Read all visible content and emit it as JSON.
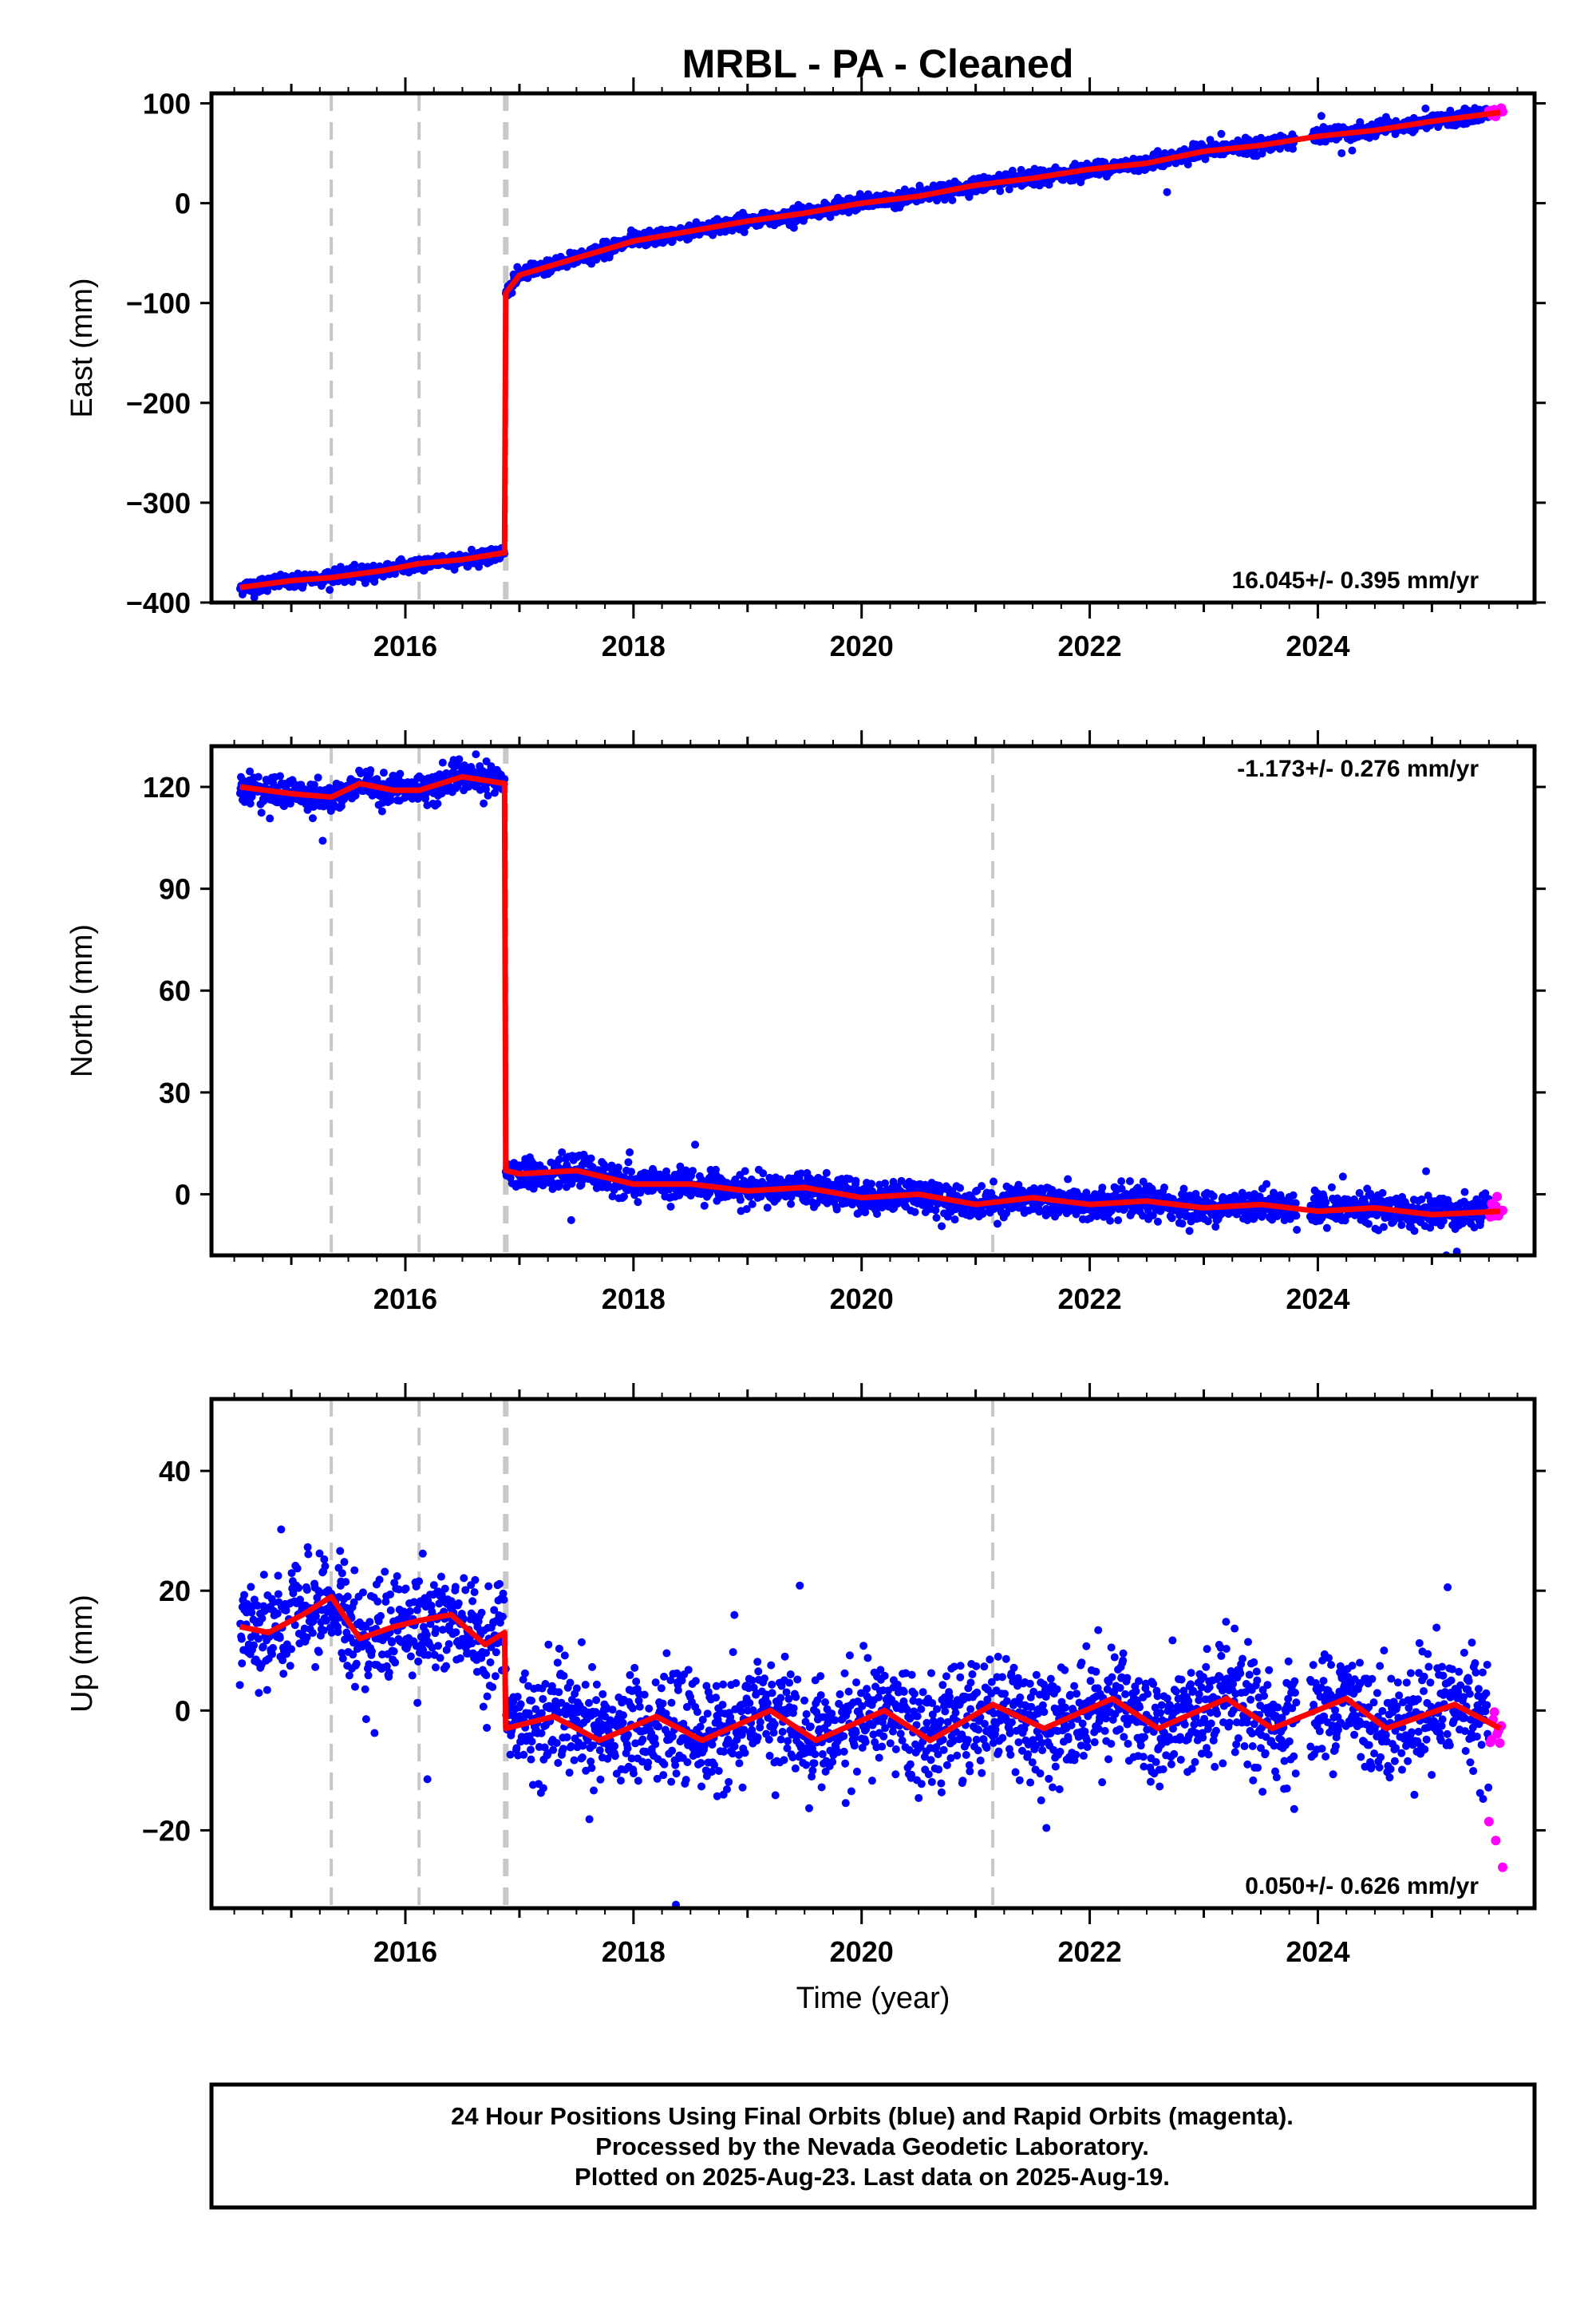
{
  "title": "MRBL  - PA - Cleaned",
  "footer": {
    "line1": "24 Hour Positions Using Final Orbits (blue) and Rapid Orbits (magenta).",
    "line2": "Processed by the Nevada Geodetic Laboratory.",
    "line3": "Plotted on 2025-Aug-23. Last data on 2025-Aug-19."
  },
  "colors": {
    "final_orbits": "#0000ff",
    "rapid_orbits": "#ff00ff",
    "model_fit": "#ff0000",
    "event_lines": "#c8c8c8"
  },
  "chart_data": [
    {
      "type": "scatter",
      "component": "east",
      "ylabel": "East (mm)",
      "xlabel": "",
      "xlim": [
        2014.3,
        2025.9
      ],
      "ylim": [
        -400,
        110
      ],
      "xticks": [
        2016,
        2018,
        2020,
        2022,
        2024
      ],
      "yticks": [
        -400,
        -300,
        -200,
        -100,
        0,
        100
      ],
      "ytick_labels": [
        "−400",
        "−300",
        "−200",
        "−100",
        "0",
        "100"
      ],
      "rate_label": "16.045+/- 0.395 mm/yr",
      "rate_position": "bottom-right",
      "event_lines_x": [
        2015.35,
        2016.12,
        2016.88
      ],
      "data_range_x": [
        2014.55,
        2025.5
      ],
      "rapid_range_x": [
        2025.5,
        2025.63
      ],
      "series": [
        {
          "name": "Final Orbits",
          "color": "#0000ff",
          "noise": 3.5
        },
        {
          "name": "Rapid Orbits",
          "color": "#ff00ff"
        },
        {
          "name": "Model",
          "color": "#ff0000",
          "x": [
            2014.55,
            2015.0,
            2015.35,
            2015.8,
            2016.12,
            2016.5,
            2016.87,
            2016.88,
            2017.0,
            2017.5,
            2018.0,
            2018.5,
            2019.0,
            2019.5,
            2020.0,
            2020.5,
            2021.0,
            2021.5,
            2022.0,
            2022.5,
            2023.0,
            2023.5,
            2024.0,
            2024.5,
            2025.0,
            2025.6
          ],
          "y": [
            -385,
            -378,
            -375,
            -368,
            -361,
            -357,
            -350,
            -90,
            -72,
            -55,
            -38,
            -28,
            -18,
            -10,
            0,
            7,
            18,
            25,
            34,
            40,
            52,
            58,
            67,
            73,
            82,
            91
          ]
        }
      ]
    },
    {
      "type": "scatter",
      "component": "north",
      "ylabel": "North (mm)",
      "xlabel": "",
      "xlim": [
        2014.3,
        2025.9
      ],
      "ylim": [
        -18,
        132
      ],
      "xticks": [
        2016,
        2018,
        2020,
        2022,
        2024
      ],
      "yticks": [
        0,
        30,
        60,
        90,
        120
      ],
      "ytick_labels": [
        "0",
        "30",
        "60",
        "90",
        "120"
      ],
      "rate_label": "-1.173+/- 0.276 mm/yr",
      "rate_position": "top-right",
      "event_lines_x": [
        2015.35,
        2016.12,
        2016.88,
        2021.15
      ],
      "data_range_x": [
        2014.55,
        2025.5
      ],
      "rapid_range_x": [
        2025.5,
        2025.63
      ],
      "series": [
        {
          "name": "Final Orbits",
          "color": "#0000ff",
          "noise": 2.2
        },
        {
          "name": "Rapid Orbits",
          "color": "#ff00ff"
        },
        {
          "name": "Model",
          "color": "#ff0000",
          "x": [
            2014.55,
            2015.0,
            2015.35,
            2015.6,
            2015.9,
            2016.12,
            2016.5,
            2016.87,
            2016.88,
            2017.0,
            2017.5,
            2018.0,
            2018.5,
            2019.0,
            2019.5,
            2020.0,
            2020.5,
            2021.0,
            2021.5,
            2022.0,
            2022.5,
            2023.0,
            2023.5,
            2024.0,
            2024.5,
            2025.0,
            2025.6
          ],
          "y": [
            120,
            118,
            117,
            121,
            119,
            119,
            123,
            121,
            7,
            6,
            7,
            3,
            3,
            1,
            2,
            -1,
            0,
            -3,
            -1,
            -3,
            -2,
            -4,
            -3,
            -5,
            -4,
            -6,
            -5
          ]
        }
      ]
    },
    {
      "type": "scatter",
      "component": "up",
      "ylabel": "Up (mm)",
      "xlabel": "Time (year)",
      "xlim": [
        2014.3,
        2025.9
      ],
      "ylim": [
        -33,
        52
      ],
      "xticks": [
        2016,
        2018,
        2020,
        2022,
        2024
      ],
      "yticks": [
        -20,
        0,
        20,
        40
      ],
      "ytick_labels": [
        "−20",
        "0",
        "20",
        "40"
      ],
      "rate_label": "0.050+/- 0.626 mm/yr",
      "rate_position": "bottom-right",
      "event_lines_x": [
        2015.35,
        2016.12,
        2016.88,
        2021.15
      ],
      "data_range_x": [
        2014.55,
        2025.5
      ],
      "rapid_range_x": [
        2025.5,
        2025.63
      ],
      "series": [
        {
          "name": "Final Orbits",
          "color": "#0000ff",
          "noise": 4.5
        },
        {
          "name": "Rapid Orbits",
          "color": "#ff00ff"
        },
        {
          "name": "Model",
          "color": "#ff0000",
          "x": [
            2014.55,
            2014.8,
            2015.1,
            2015.35,
            2015.6,
            2015.9,
            2016.12,
            2016.4,
            2016.7,
            2016.87,
            2016.88,
            2017.3,
            2017.7,
            2018.2,
            2018.6,
            2019.2,
            2019.6,
            2020.2,
            2020.6,
            2021.15,
            2021.6,
            2022.2,
            2022.6,
            2023.2,
            2023.6,
            2024.25,
            2024.6,
            2025.2,
            2025.6
          ],
          "y": [
            14,
            13,
            16,
            19,
            12,
            14,
            15,
            16,
            11,
            13,
            -3,
            -1,
            -5,
            -1,
            -5,
            0,
            -5,
            0,
            -5,
            1,
            -3,
            2,
            -3,
            2,
            -3,
            2,
            -3,
            1,
            -3
          ]
        }
      ]
    }
  ]
}
